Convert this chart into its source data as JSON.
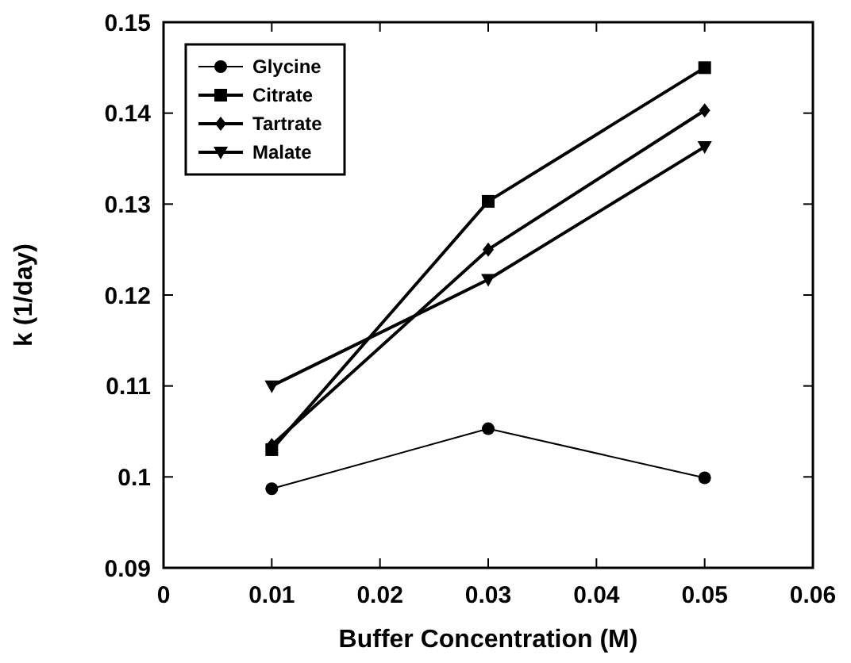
{
  "chart_data": {
    "type": "line",
    "xlabel": "Buffer Concentration (M)",
    "ylabel": "k (1/day)",
    "x": [
      0.01,
      0.03,
      0.05
    ],
    "xlim": [
      0,
      0.06
    ],
    "xticks": [
      0,
      0.01,
      0.02,
      0.03,
      0.04,
      0.05,
      0.06
    ],
    "ylim": [
      0.09,
      0.15
    ],
    "yticks": [
      0.09,
      {
        "value": 0.1,
        "label": "0.1"
      },
      0.11,
      0.12,
      0.13,
      0.14,
      0.15
    ],
    "grid": false,
    "legend": "top left",
    "line_style": "solid",
    "series": [
      {
        "name": "Glycine",
        "color": "#000000",
        "marker": "circle",
        "values": [
          0.0987,
          0.1053,
          0.0999
        ]
      },
      {
        "name": "Citrate",
        "color": "#000000",
        "marker": "square",
        "values": [
          0.103,
          0.1303,
          0.145
        ]
      },
      {
        "name": "Tartrate",
        "color": "#000000",
        "marker": "diamond",
        "values": [
          0.1035,
          0.125,
          0.1403
        ]
      },
      {
        "name": "Malate",
        "color": "#000000",
        "marker": "triangle-down",
        "values": [
          0.11,
          0.1217,
          0.1363
        ]
      }
    ]
  }
}
